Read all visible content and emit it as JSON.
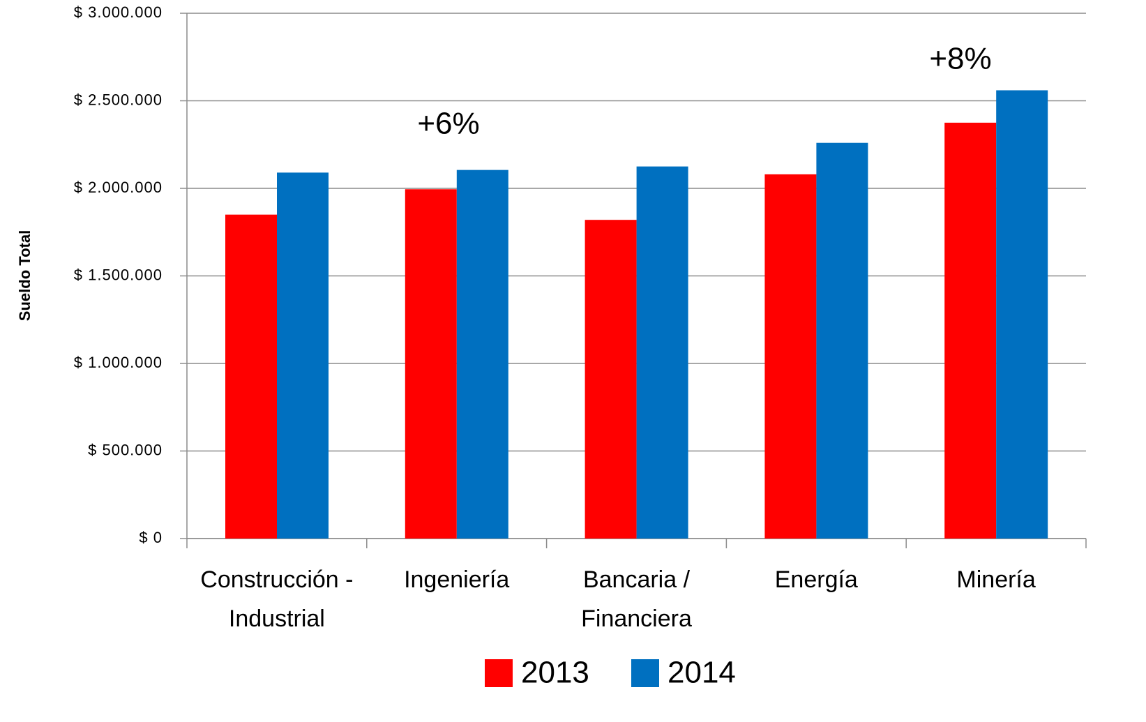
{
  "chart_data": {
    "type": "bar",
    "y_label": "Sueldo Total",
    "categories": [
      "Construcción - Industrial",
      "Ingeniería",
      "Bancaria / Financiera",
      "Energía",
      "Minería"
    ],
    "series": [
      {
        "name": "2013",
        "color": "#ff0000",
        "values": [
          1850000,
          1995000,
          1820000,
          2080000,
          2375000
        ]
      },
      {
        "name": "2014",
        "color": "#0070c0",
        "values": [
          2090000,
          2105000,
          2125000,
          2260000,
          2560000
        ]
      }
    ],
    "annotations": [
      "+6%",
      "+8%"
    ],
    "ylim": [
      0,
      3000000
    ],
    "yticks": [
      {
        "value": 0,
        "label": "$ 0"
      },
      {
        "value": 500000,
        "label": "$ 500.000"
      },
      {
        "value": 1000000,
        "label": "$ 1.000.000"
      },
      {
        "value": 1500000,
        "label": "$ 1.500.000"
      },
      {
        "value": 2000000,
        "label": "$ 2.000.000"
      },
      {
        "value": 2500000,
        "label": "$ 2.500.000"
      },
      {
        "value": 3000000,
        "label": "$ 3.000.000"
      }
    ],
    "grid": true,
    "legend": "bottom"
  }
}
